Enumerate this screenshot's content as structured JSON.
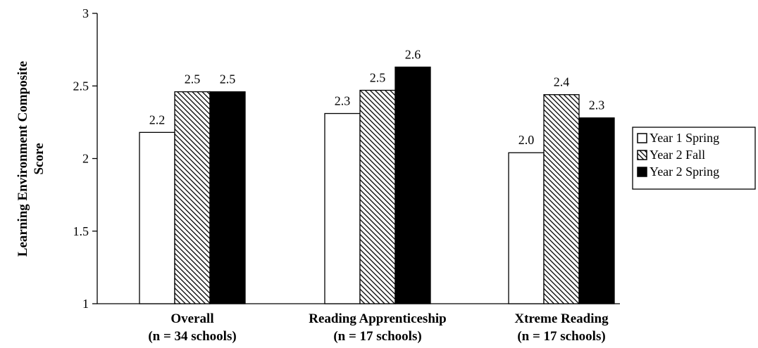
{
  "chart_data": {
    "type": "bar",
    "ylabel_lines": [
      "Learning Environment Composite",
      "Score"
    ],
    "ylim": [
      1,
      3
    ],
    "yticks": [
      "1",
      "1.5",
      "2",
      "2.5",
      "3"
    ],
    "categories": [
      [
        "Overall",
        "(n = 34 schools)"
      ],
      [
        "Reading Apprenticeship",
        "(n = 17 schools)"
      ],
      [
        "Xtreme Reading",
        "(n = 17 schools)"
      ]
    ],
    "series": [
      {
        "name": "Year 1 Spring",
        "values": [
          2.18,
          2.31,
          2.04
        ],
        "labels": [
          "2.2",
          "2.3",
          "2.0"
        ],
        "style": "white"
      },
      {
        "name": "Year 2 Fall",
        "values": [
          2.46,
          2.47,
          2.44
        ],
        "labels": [
          "2.5",
          "2.5",
          "2.4"
        ],
        "style": "hatched"
      },
      {
        "name": "Year 2 Spring",
        "values": [
          2.46,
          2.63,
          2.28
        ],
        "labels": [
          "2.5",
          "2.6",
          "2.3"
        ],
        "style": "black"
      }
    ],
    "legend_position": "right",
    "grid": false
  }
}
